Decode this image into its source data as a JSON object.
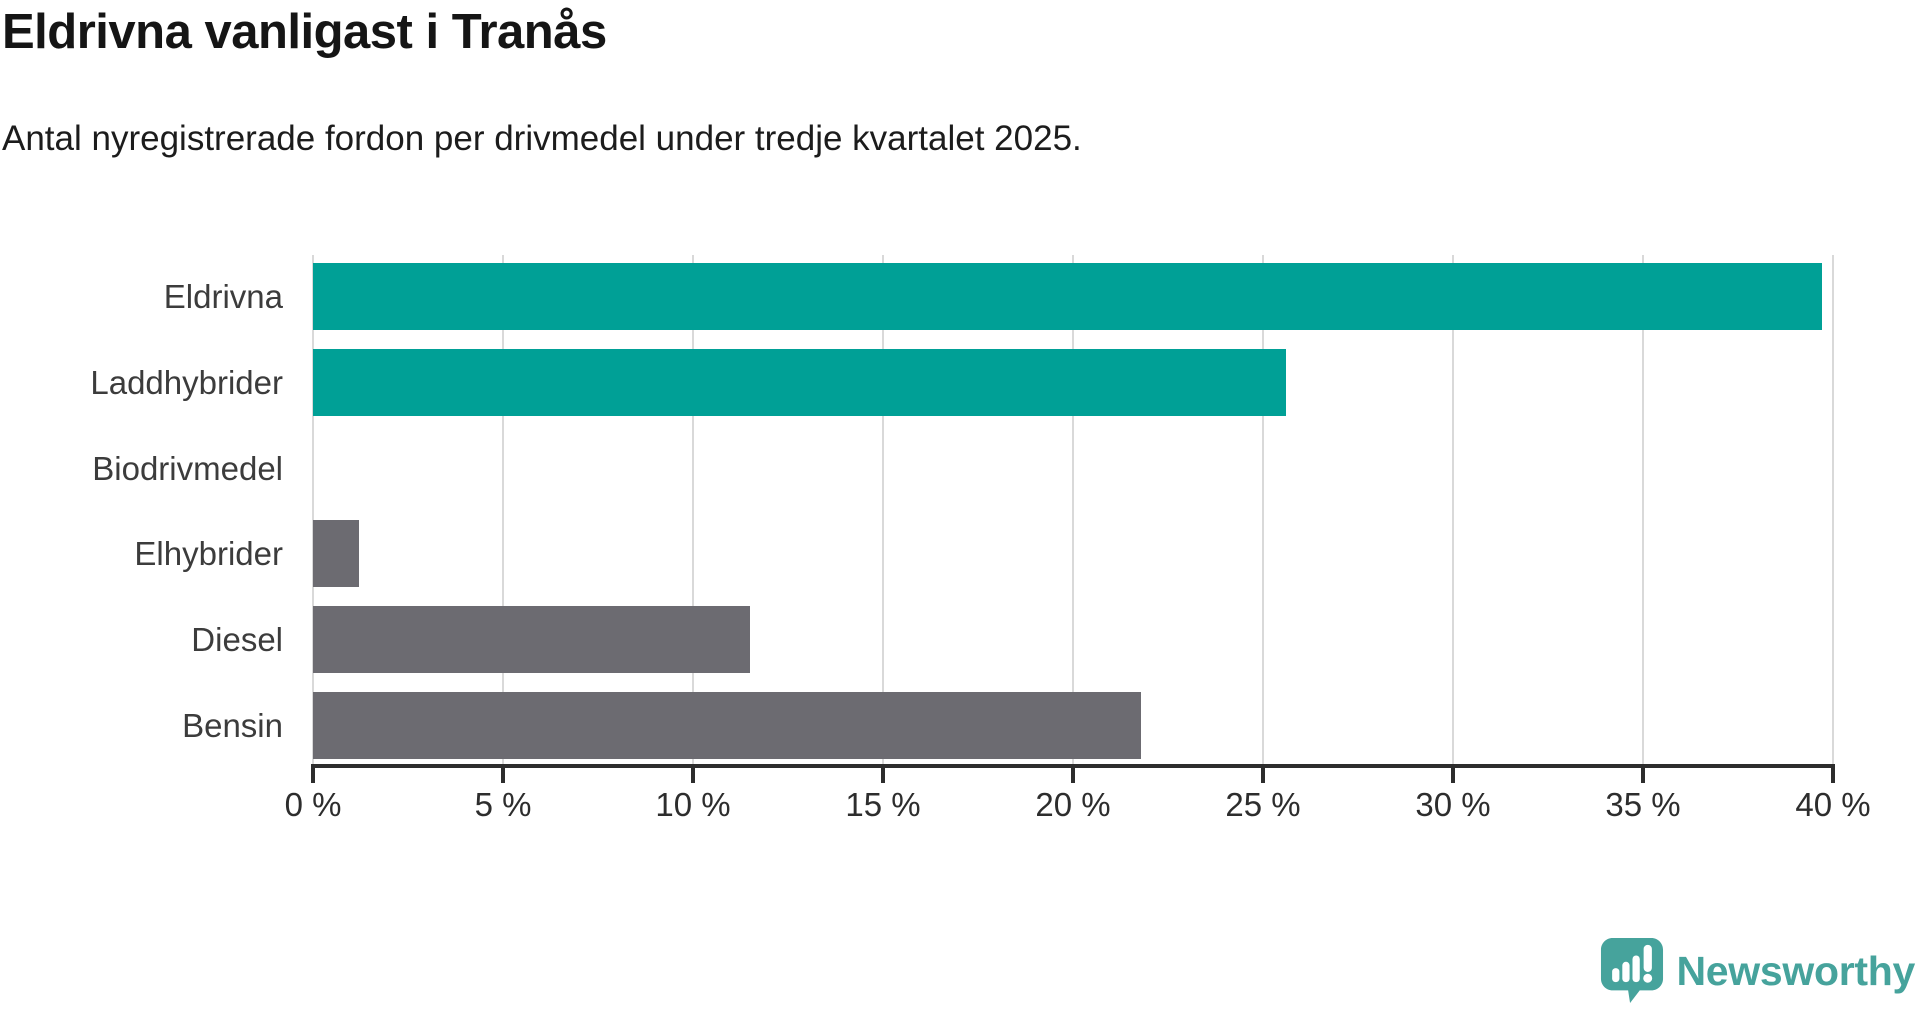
{
  "chart_data": {
    "type": "bar",
    "orientation": "horizontal",
    "title": "Eldrivna vanligast i Tranås",
    "subtitle": "Antal nyregistrerade fordon per drivmedel under tredje kvartalet 2025.",
    "categories": [
      "Eldrivna",
      "Laddhybrider",
      "Biodrivmedel",
      "Elhybrider",
      "Diesel",
      "Bensin"
    ],
    "values": [
      39.7,
      25.6,
      0,
      1.2,
      11.5,
      21.8
    ],
    "unit": "%",
    "bar_colors": [
      "#00a096",
      "#00a096",
      "#6c6b71",
      "#6c6b71",
      "#6c6b71",
      "#6c6b71"
    ],
    "accent_color": "#00a096",
    "neutral_color": "#6c6b71",
    "grid_color": "#d9d9d9",
    "axis_color": "#2d2d2d",
    "xlim": [
      0,
      40
    ],
    "xticks": [
      0,
      5,
      10,
      15,
      20,
      25,
      30,
      35,
      40
    ],
    "xtick_labels": [
      "0 %",
      "5 %",
      "10 %",
      "15 %",
      "20 %",
      "25 %",
      "30 %",
      "35 %",
      "40 %"
    ],
    "grid": true,
    "legend": false
  },
  "branding": {
    "logo_text": "Newsworthy",
    "logo_icon": "newsworthy-speech-bubble-chart-icon",
    "logo_color": "#46a39c"
  }
}
